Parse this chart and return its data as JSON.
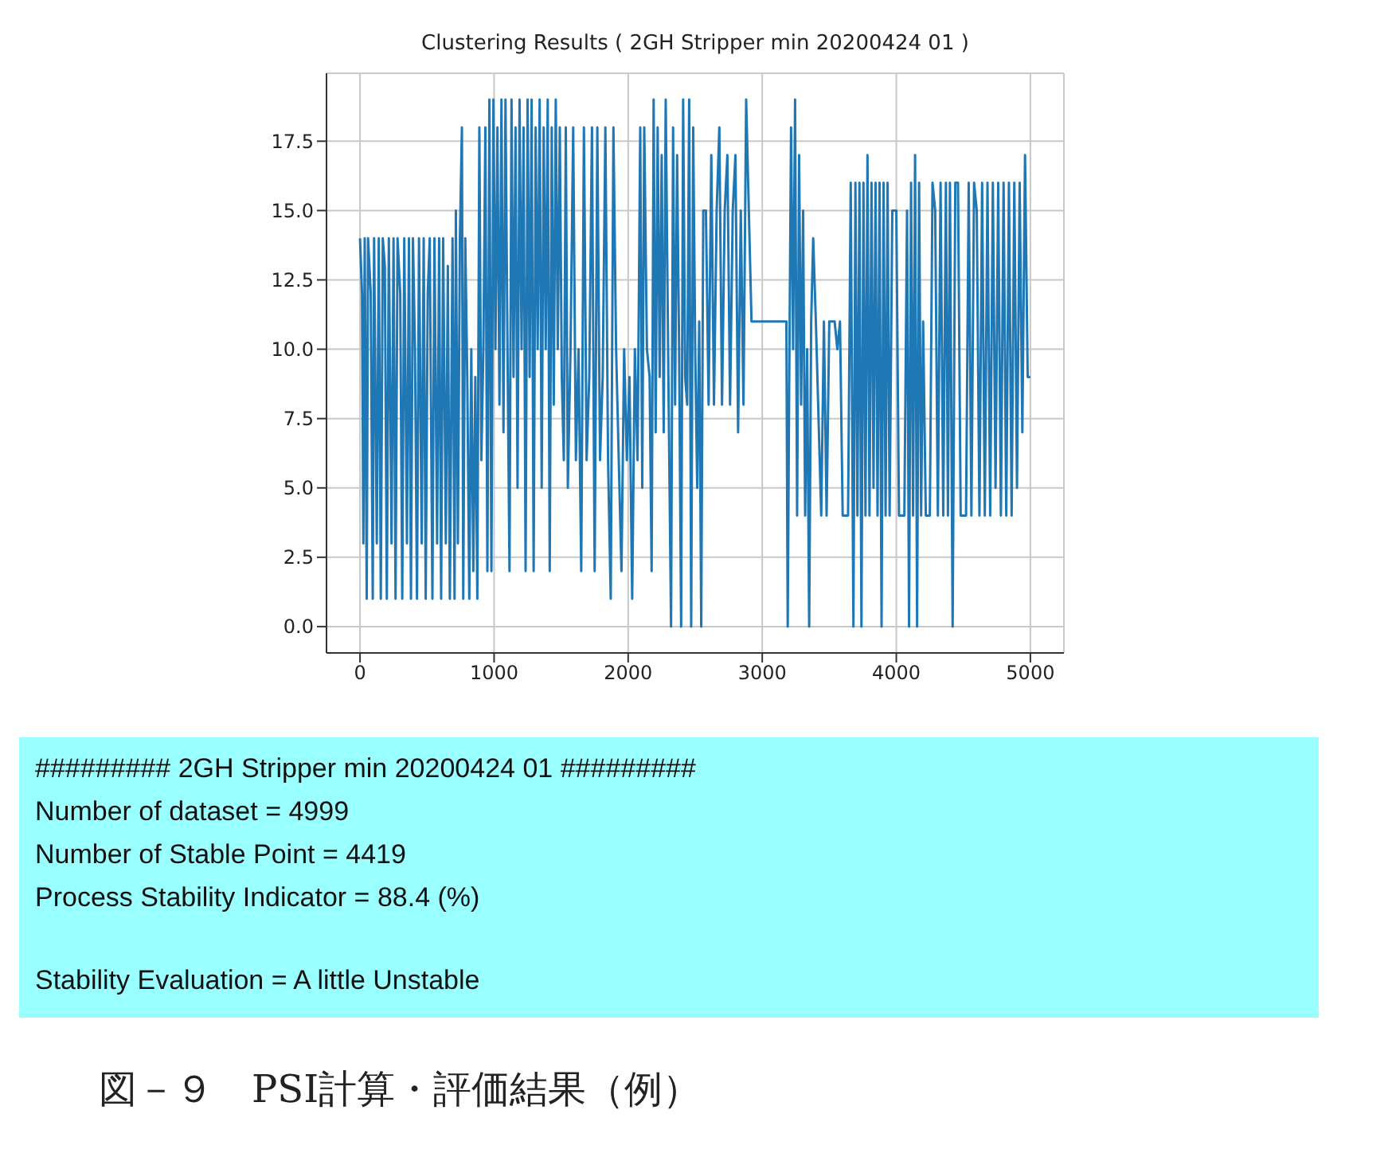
{
  "chart_data": {
    "type": "line",
    "title": "Clustering Results ( 2GH Stripper min 20200424 01 )",
    "xlim": [
      -250,
      5250
    ],
    "xticks": [
      0,
      1000,
      2000,
      3000,
      4000,
      5000
    ],
    "ylim": [
      -0.95,
      19.95
    ],
    "yticks": [
      {
        "value": 0,
        "label": "0.0"
      },
      {
        "value": 2.5,
        "label": "2.5"
      },
      {
        "value": 5,
        "label": "5.0"
      },
      {
        "value": 7.5,
        "label": "7.5"
      },
      {
        "value": 10,
        "label": "10.0"
      },
      {
        "value": 12.5,
        "label": "12.5"
      },
      {
        "value": 15,
        "label": "15.0"
      },
      {
        "value": 17.5,
        "label": "17.5"
      }
    ],
    "grid": true,
    "marker": "none",
    "line_style": "solid",
    "series": [
      {
        "color": "#1f77b4",
        "x": [
          0,
          15,
          25,
          35,
          50,
          60,
          80,
          95,
          105,
          125,
          140,
          155,
          170,
          185,
          200,
          215,
          235,
          250,
          265,
          280,
          300,
          315,
          330,
          350,
          365,
          380,
          395,
          410,
          425,
          440,
          460,
          475,
          490,
          505,
          520,
          540,
          555,
          575,
          590,
          605,
          620,
          640,
          655,
          670,
          690,
          705,
          715,
          730,
          745,
          760,
          770,
          785,
          800,
          815,
          830,
          845,
          860,
          875,
          890,
          905,
          920,
          935,
          950,
          965,
          980,
          995,
          1010,
          1025,
          1040,
          1055,
          1070,
          1085,
          1100,
          1115,
          1130,
          1145,
          1160,
          1175,
          1190,
          1205,
          1220,
          1235,
          1250,
          1265,
          1280,
          1295,
          1310,
          1325,
          1340,
          1355,
          1370,
          1385,
          1400,
          1415,
          1430,
          1445,
          1460,
          1475,
          1490,
          1505,
          1520,
          1535,
          1550,
          1570,
          1590,
          1610,
          1630,
          1650,
          1670,
          1690,
          1710,
          1730,
          1750,
          1770,
          1790,
          1810,
          1830,
          1850,
          1870,
          1890,
          1910,
          1930,
          1950,
          1970,
          1990,
          2010,
          2030,
          2050,
          2070,
          2090,
          2105,
          2120,
          2140,
          2160,
          2175,
          2190,
          2205,
          2220,
          2235,
          2250,
          2265,
          2280,
          2300,
          2320,
          2335,
          2350,
          2365,
          2380,
          2395,
          2410,
          2425,
          2440,
          2455,
          2470,
          2485,
          2500,
          2515,
          2530,
          2545,
          2560,
          2580,
          2600,
          2620,
          2640,
          2660,
          2680,
          2700,
          2720,
          2740,
          2760,
          2780,
          2800,
          2820,
          2840,
          2860,
          2880,
          2900,
          2920,
          2960,
          3000,
          3050,
          3100,
          3150,
          3180,
          3190,
          3200,
          3215,
          3230,
          3245,
          3260,
          3275,
          3290,
          3305,
          3320,
          3335,
          3350,
          3365,
          3380,
          3400,
          3440,
          3460,
          3480,
          3500,
          3540,
          3560,
          3580,
          3600,
          3640,
          3660,
          3680,
          3695,
          3710,
          3725,
          3740,
          3755,
          3770,
          3785,
          3800,
          3815,
          3830,
          3845,
          3860,
          3875,
          3890,
          3905,
          3920,
          3935,
          3950,
          3970,
          4000,
          4020,
          4060,
          4080,
          4095,
          4110,
          4125,
          4140,
          4155,
          4170,
          4185,
          4200,
          4220,
          4250,
          4270,
          4290,
          4310,
          4330,
          4350,
          4370,
          4385,
          4400,
          4420,
          4440,
          4460,
          4480,
          4520,
          4540,
          4560,
          4580,
          4600,
          4620,
          4640,
          4660,
          4680,
          4700,
          4720,
          4740,
          4760,
          4780,
          4800,
          4820,
          4840,
          4860,
          4880,
          4900,
          4920,
          4940,
          4960,
          4980,
          4999
        ],
        "values": [
          14,
          12,
          3,
          14,
          1,
          14,
          12,
          1,
          14,
          3,
          14,
          1,
          14,
          13,
          1,
          14,
          3,
          14,
          1,
          14,
          12,
          1,
          14,
          3,
          14,
          1,
          14,
          10,
          1,
          14,
          3,
          14,
          1,
          12,
          14,
          1,
          14,
          3,
          14,
          1,
          14,
          3,
          13,
          1,
          14,
          1,
          15,
          3,
          14,
          18,
          1,
          14,
          9,
          1,
          10,
          2,
          9,
          1,
          18,
          6,
          10,
          18,
          2,
          19,
          2,
          19,
          10,
          18,
          8,
          19,
          7,
          19,
          10,
          2,
          19,
          9,
          18,
          5,
          19,
          10,
          18,
          2,
          19,
          9,
          19,
          2,
          18,
          10,
          19,
          5,
          18,
          10,
          19,
          2,
          18,
          8,
          19,
          10,
          18,
          9,
          6,
          18,
          5,
          10,
          18,
          6,
          10,
          2,
          18,
          6,
          9,
          18,
          2,
          18,
          6,
          9,
          18,
          6,
          1,
          18,
          10,
          6,
          2,
          10,
          6,
          9,
          1,
          10,
          6,
          18,
          5,
          18,
          10,
          9,
          2,
          19,
          7,
          18,
          9,
          17,
          7,
          19,
          9,
          0,
          18,
          8,
          17,
          10,
          0,
          19,
          9,
          8,
          19,
          0,
          18,
          10,
          5,
          11,
          0,
          15,
          15,
          8,
          17,
          8,
          15,
          18,
          8,
          15,
          17,
          8,
          15,
          17,
          7,
          15,
          8,
          19,
          15,
          11,
          11,
          11,
          11,
          11,
          11,
          11,
          0,
          8,
          18,
          10,
          19,
          4,
          17,
          8,
          15,
          4,
          10,
          0,
          11,
          14,
          11,
          4,
          11,
          4,
          11,
          11,
          10,
          11,
          4,
          4,
          16,
          0,
          16,
          4,
          16,
          0,
          16,
          4,
          17,
          4,
          16,
          5,
          16,
          4,
          16,
          0,
          16,
          4,
          16,
          4,
          15,
          15,
          4,
          4,
          15,
          0,
          16,
          4,
          17,
          0,
          16,
          4,
          11,
          4,
          4,
          16,
          15,
          4,
          16,
          4,
          16,
          4,
          16,
          0,
          16,
          16,
          4,
          4,
          16,
          4,
          16,
          15,
          4,
          16,
          4,
          16,
          4,
          16,
          5,
          16,
          4,
          16,
          4,
          16,
          4,
          16,
          5,
          16,
          7,
          17,
          9,
          9
        ]
      }
    ],
    "annotations": [
      "#########  2GH Stripper min 20200424 01  #########",
      "Number of dataset = 4999",
      "Number of Stable Point = 4419",
      "Process Stability Indicator = 88.4 (%)",
      "Stability Evaluation = A little Unstable",
      "図－９　PSI計算・評価結果（例）"
    ]
  }
}
